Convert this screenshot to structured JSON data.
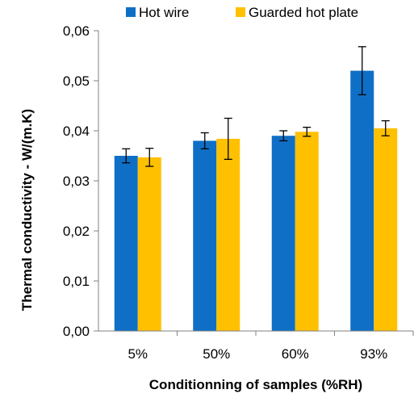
{
  "chart_data": {
    "type": "bar",
    "categories": [
      "5%",
      "50%",
      "60%",
      "93%"
    ],
    "series": [
      {
        "name": "Hot wire",
        "color": "#0F6FC6",
        "values": [
          0.035,
          0.038,
          0.039,
          0.052
        ],
        "errors": [
          0.0014,
          0.0016,
          0.001,
          0.0048
        ]
      },
      {
        "name": "Guarded hot plate",
        "color": "#FFC000",
        "values": [
          0.0347,
          0.0384,
          0.0398,
          0.0405
        ],
        "errors": [
          0.0018,
          0.0041,
          0.0009,
          0.0015
        ]
      }
    ],
    "ylabel": "Thermal conductivity - W/(m.K)",
    "xlabel": "Conditionning of samples (%RH)",
    "ylim": [
      0,
      0.06
    ],
    "yticks": [
      "0,00",
      "0,01",
      "0,02",
      "0,03",
      "0,04",
      "0,05",
      "0,06"
    ],
    "legend_position": "top",
    "grid": false
  }
}
